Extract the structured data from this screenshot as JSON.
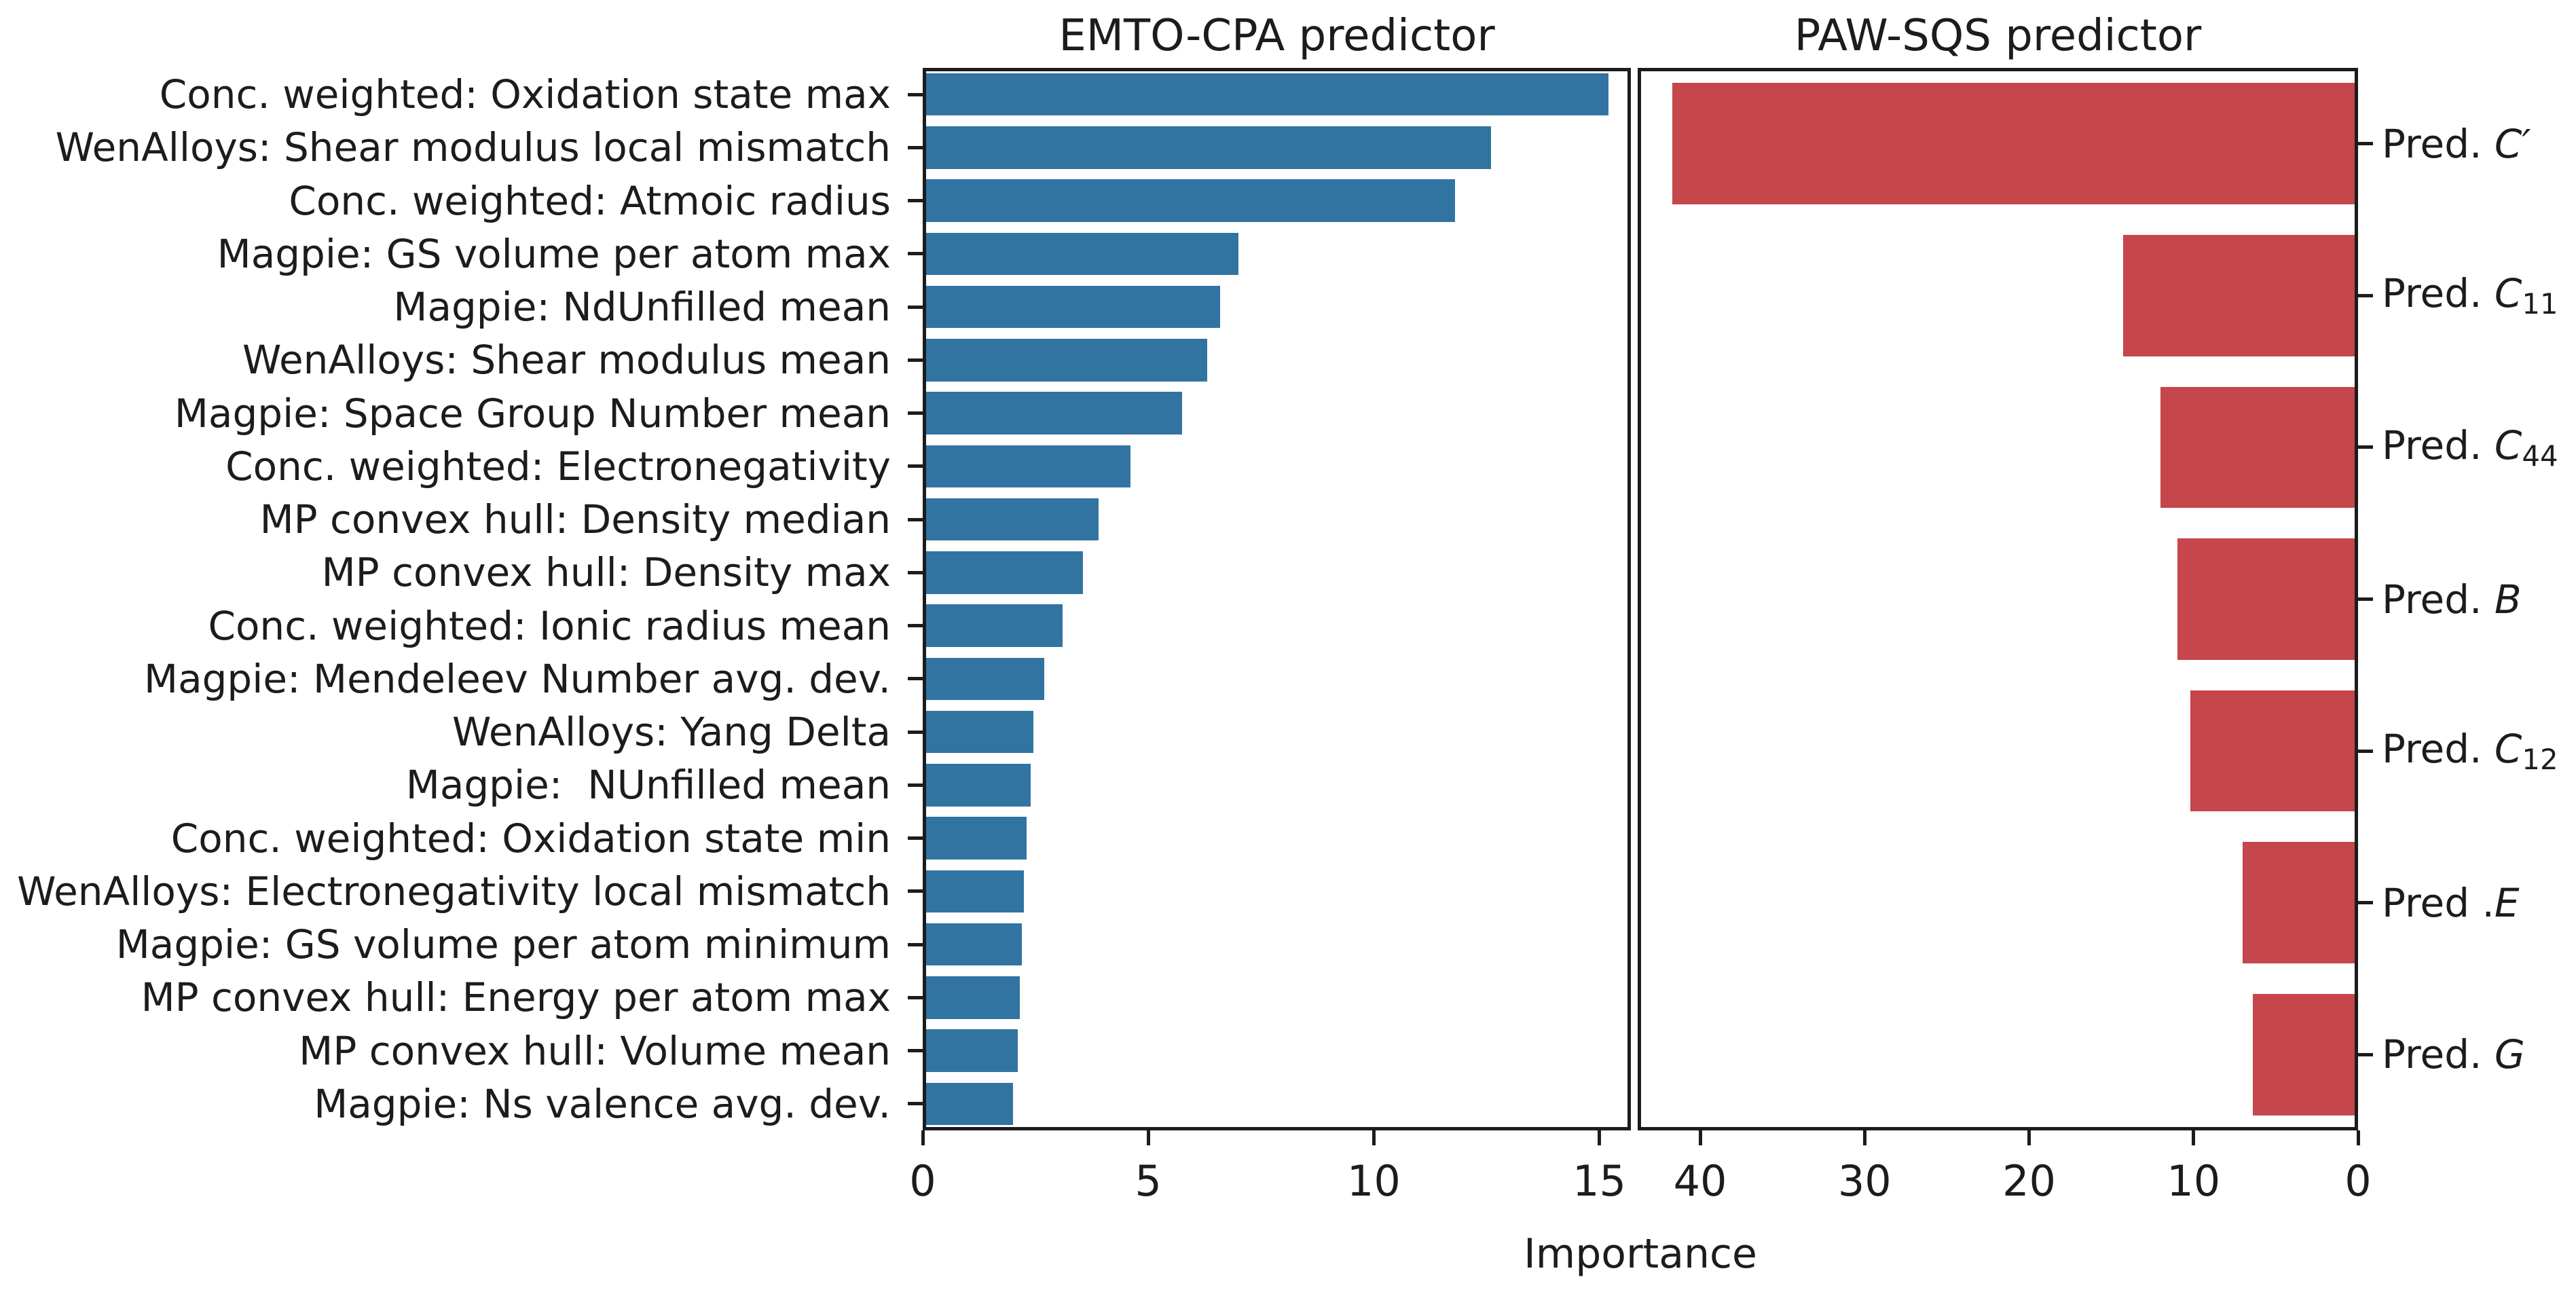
{
  "figure": {
    "background": "#ffffff",
    "axis_color": "#1c1c1c",
    "grid": false,
    "legend": "none"
  },
  "chart_data": [
    {
      "type": "bar",
      "orientation": "horizontal",
      "title": "EMTO-CPA predictor",
      "xlabel": "Importance",
      "xlim": [
        0,
        15.7
      ],
      "xticks": [
        0,
        5,
        10,
        15
      ],
      "bar_color": "#3274a1",
      "categories": [
        "Conc. weighted: Oxidation state max",
        "WenAlloys: Shear modulus local mismatch",
        "Conc. weighted: Atmoic radius",
        "Magpie: GS volume per atom max",
        "Magpie: NdUnfilled mean",
        "WenAlloys: Shear modulus mean",
        "Magpie: Space Group Number mean",
        "Conc. weighted: Electronegativity",
        "MP convex hull: Density median",
        "MP convex hull: Density max",
        "Conc. weighted: Ionic radius mean",
        "Magpie: Mendeleev Number avg. dev.",
        "WenAlloys: Yang Delta",
        "Magpie:  NUnfilled mean",
        "Conc. weighted: Oxidation state min",
        "WenAlloys: Electronegativity local mismatch",
        "Magpie: GS volume per atom minimum",
        "MP convex hull: Energy per atom max",
        "MP convex hull: Volume mean",
        "Magpie: Ns valence avg. dev."
      ],
      "values": [
        15.2,
        12.6,
        11.8,
        7.0,
        6.6,
        6.3,
        5.75,
        4.6,
        3.9,
        3.55,
        3.1,
        2.7,
        2.45,
        2.4,
        2.3,
        2.25,
        2.2,
        2.15,
        2.1,
        2.0
      ]
    },
    {
      "type": "bar",
      "orientation": "horizontal",
      "title": "PAW-SQS predictor",
      "axis_reversed": true,
      "xlim": [
        0,
        43.8
      ],
      "xticks": [
        40,
        30,
        20,
        10,
        0
      ],
      "bar_color": "#c5464b",
      "categories": [
        {
          "prefix": "Pred. ",
          "symbol": "C",
          "prime": true,
          "subscript": ""
        },
        {
          "prefix": "Pred. ",
          "symbol": "C",
          "prime": false,
          "subscript": "11"
        },
        {
          "prefix": "Pred. ",
          "symbol": "C",
          "prime": false,
          "subscript": "44"
        },
        {
          "prefix": "Pred. ",
          "symbol": "B",
          "prime": false,
          "subscript": ""
        },
        {
          "prefix": "Pred. ",
          "symbol": "C",
          "prime": false,
          "subscript": "12"
        },
        {
          "prefix": "Pred .",
          "symbol": "E",
          "prime": false,
          "subscript": ""
        },
        {
          "prefix": "Pred. ",
          "symbol": "G",
          "prime": false,
          "subscript": ""
        }
      ],
      "values": [
        41.7,
        14.3,
        12.0,
        11.0,
        10.2,
        7.0,
        6.4
      ]
    }
  ]
}
